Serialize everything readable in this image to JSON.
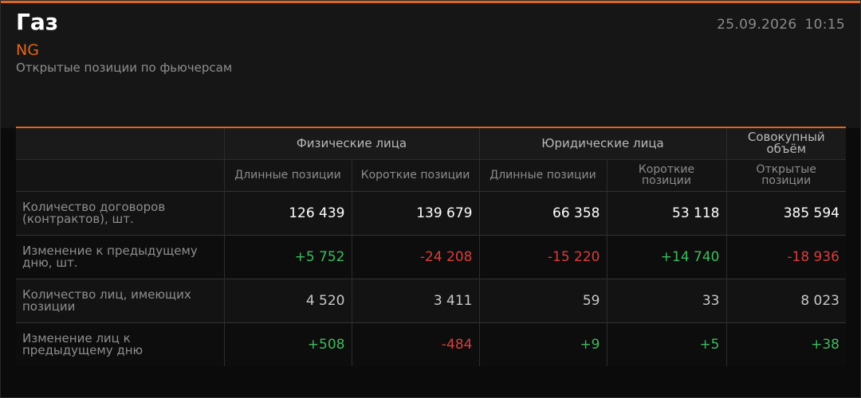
{
  "header": {
    "title": "Газ",
    "ticker": "NG",
    "subtitle": "Открытые позиции по фьючерсам",
    "date": "25.09.2026",
    "time": "10:15"
  },
  "table": {
    "groups": [
      {
        "label": "Физические лица",
        "span": 2
      },
      {
        "label": "Юридические лица",
        "span": 2
      },
      {
        "label": "Совокупный объём",
        "span": 1
      }
    ],
    "columns": [
      "Длинные позиции",
      "Короткие позиции",
      "Длинные позиции",
      "Короткие позиции",
      "Открытые позиции"
    ],
    "rows": [
      [
        "Количество договоров (контрактов), шт.",
        "126 439",
        "139 679",
        "66 358",
        "53 118",
        "385 594"
      ],
      [
        "Изменение к предыдущему дню, шт.",
        "+5 752",
        "-24 208",
        "-15 220",
        "+14 740",
        "-18 936"
      ],
      [
        "Количество лиц, имеющих позиции",
        "4 520",
        "3 411",
        "59",
        "33",
        "8 023"
      ],
      [
        "Изменение лиц к предыдущему дню",
        "+508",
        "-484",
        "+9",
        "+5",
        "+38"
      ]
    ]
  }
}
